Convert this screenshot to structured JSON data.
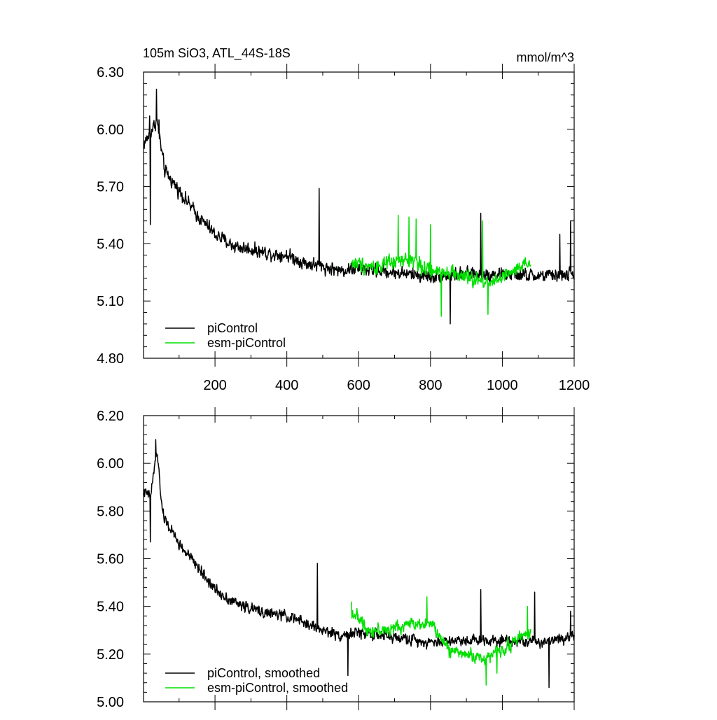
{
  "chart_data": [
    {
      "type": "line",
      "title": "105m SiO3, ATL_44S-18S",
      "units": "mmol/m^3",
      "xlabel": "",
      "ylabel": "",
      "xlim": [
        1,
        1200
      ],
      "ylim": [
        4.8,
        6.3
      ],
      "yticks": [
        "4.80",
        "5.10",
        "5.40",
        "5.70",
        "6.00",
        "6.30"
      ],
      "xticks": [
        "200",
        "400",
        "600",
        "800",
        "1000",
        "1200"
      ],
      "grid": false,
      "legend_position": "bottom-left",
      "series": [
        {
          "name": "piControl",
          "color": "#000000",
          "x_start": 1,
          "x_step": 1,
          "length": 1200,
          "anchors": [
            [
              1,
              5.92
            ],
            [
              20,
              5.98
            ],
            [
              38,
              6.05
            ],
            [
              60,
              5.78
            ],
            [
              100,
              5.68
            ],
            [
              150,
              5.55
            ],
            [
              200,
              5.45
            ],
            [
              250,
              5.39
            ],
            [
              300,
              5.37
            ],
            [
              350,
              5.35
            ],
            [
              400,
              5.34
            ],
            [
              450,
              5.3
            ],
            [
              500,
              5.28
            ],
            [
              550,
              5.26
            ],
            [
              600,
              5.27
            ],
            [
              700,
              5.25
            ],
            [
              800,
              5.23
            ],
            [
              900,
              5.24
            ],
            [
              1000,
              5.24
            ],
            [
              1100,
              5.23
            ],
            [
              1200,
              5.24
            ]
          ],
          "noise_amp": 0.075,
          "spikes": [
            [
              37,
              6.21
            ],
            [
              18,
              6.07
            ],
            [
              44,
              6.05
            ],
            [
              20,
              5.5
            ],
            [
              490,
              5.69
            ],
            [
              940,
              5.56
            ],
            [
              1160,
              5.45
            ],
            [
              1190,
              5.52
            ],
            [
              855,
              4.98
            ]
          ]
        },
        {
          "name": "esm-piControl",
          "color": "#00e000",
          "x_start": 580,
          "x_step": 1,
          "length": 500,
          "anchors": [
            [
              580,
              5.3
            ],
            [
              650,
              5.28
            ],
            [
              700,
              5.3
            ],
            [
              750,
              5.32
            ],
            [
              800,
              5.25
            ],
            [
              850,
              5.26
            ],
            [
              900,
              5.22
            ],
            [
              950,
              5.2
            ],
            [
              1000,
              5.22
            ],
            [
              1080,
              5.3
            ]
          ],
          "noise_amp": 0.085,
          "spikes": [
            [
              710,
              5.55
            ],
            [
              740,
              5.54
            ],
            [
              760,
              5.53
            ],
            [
              800,
              5.5
            ],
            [
              945,
              5.52
            ],
            [
              960,
              5.03
            ],
            [
              830,
              5.02
            ]
          ]
        }
      ]
    },
    {
      "type": "line",
      "title": "",
      "xlabel": "",
      "ylabel": "",
      "xlim": [
        1,
        1200
      ],
      "ylim": [
        5.0,
        6.2
      ],
      "yticks": [
        "5.00",
        "5.20",
        "5.40",
        "5.60",
        "5.80",
        "6.00",
        "6.20"
      ],
      "grid": false,
      "legend_position": "bottom-left",
      "series": [
        {
          "name": "piControl, smoothed",
          "color": "#000000",
          "x_start": 1,
          "x_step": 1,
          "length": 1200,
          "anchors": [
            [
              1,
              5.88
            ],
            [
              20,
              5.86
            ],
            [
              38,
              6.05
            ],
            [
              55,
              5.78
            ],
            [
              100,
              5.66
            ],
            [
              150,
              5.57
            ],
            [
              200,
              5.47
            ],
            [
              250,
              5.42
            ],
            [
              300,
              5.39
            ],
            [
              350,
              5.37
            ],
            [
              400,
              5.36
            ],
            [
              450,
              5.33
            ],
            [
              500,
              5.3
            ],
            [
              550,
              5.28
            ],
            [
              600,
              5.29
            ],
            [
              700,
              5.27
            ],
            [
              800,
              5.25
            ],
            [
              900,
              5.26
            ],
            [
              1000,
              5.26
            ],
            [
              1100,
              5.25
            ],
            [
              1200,
              5.28
            ]
          ],
          "noise_amp": 0.05,
          "spikes": [
            [
              35,
              6.1
            ],
            [
              20,
              5.67
            ],
            [
              485,
              5.58
            ],
            [
              570,
              5.11
            ],
            [
              940,
              5.47
            ],
            [
              1090,
              5.46
            ],
            [
              1130,
              5.06
            ],
            [
              1190,
              5.38
            ]
          ]
        },
        {
          "name": "esm-piControl, smoothed",
          "color": "#00e000",
          "x_start": 580,
          "x_step": 1,
          "length": 500,
          "anchors": [
            [
              580,
              5.38
            ],
            [
              630,
              5.3
            ],
            [
              680,
              5.3
            ],
            [
              750,
              5.33
            ],
            [
              800,
              5.33
            ],
            [
              850,
              5.22
            ],
            [
              900,
              5.2
            ],
            [
              950,
              5.18
            ],
            [
              1000,
              5.22
            ],
            [
              1080,
              5.3
            ]
          ],
          "noise_amp": 0.055,
          "spikes": [
            [
              580,
              5.42
            ],
            [
              790,
              5.44
            ],
            [
              955,
              5.07
            ],
            [
              985,
              5.12
            ],
            [
              1070,
              5.4
            ]
          ]
        }
      ]
    }
  ]
}
